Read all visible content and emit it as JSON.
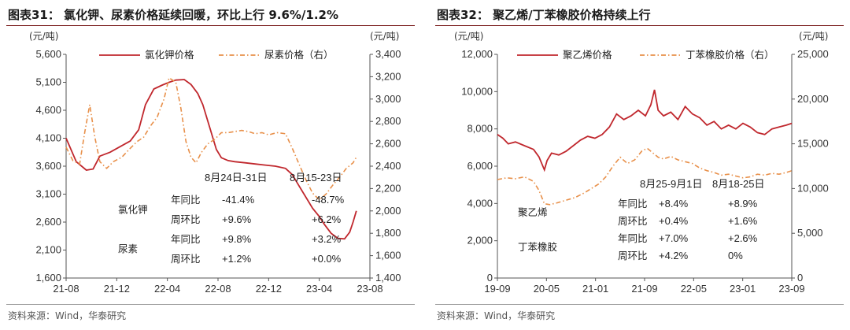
{
  "left": {
    "title": "图表31：  氯化钾、尿素价格延续回暖，环比上行 9.6%/1.2%",
    "source": "资料来源：Wind，华泰研究",
    "unit_left": "(元/吨)",
    "unit_right": "(元/吨)",
    "period1": "8月24日-31日",
    "period2": "8月15-23日",
    "rows": [
      {
        "group": "氯化钾",
        "label": "年同比",
        "v1": "-41.4%",
        "v2": "-48.7%"
      },
      {
        "group": "",
        "label": "周环比",
        "v1": "+9.6%",
        "v2": "+6.2%"
      },
      {
        "group": "尿素",
        "label": "年同比",
        "v1": "+9.8%",
        "v2": "+3.2%"
      },
      {
        "group": "",
        "label": "周环比",
        "v1": "+1.2%",
        "v2": "+0.0%"
      }
    ]
  },
  "right": {
    "title": "图表32：  聚乙烯/丁苯橡胶价格持续上行",
    "source": "资料来源：Wind，华泰研究",
    "unit_left": "(元/吨)",
    "unit_right": "(元/吨)",
    "period1": "8月25-9月1日",
    "period2": "8月18-25日",
    "rows": [
      {
        "group": "聚乙烯",
        "label": "年同比",
        "v1": "+8.4%",
        "v2": "+8.9%"
      },
      {
        "group": "",
        "label": "周环比",
        "v1": "+0.4%",
        "v2": "+1.6%"
      },
      {
        "group": "丁苯橡胶",
        "label": "年同比",
        "v1": "+7.0%",
        "v2": "+2.6%"
      },
      {
        "group": "",
        "label": "周环比",
        "v1": "+4.2%",
        "v2": "0%"
      }
    ]
  },
  "chart_data": [
    {
      "type": "line",
      "x_ticks": [
        "21-08",
        "21-12",
        "22-04",
        "22-08",
        "22-12",
        "23-04",
        "23-08"
      ],
      "y_left_ticks": [
        1600,
        2100,
        2600,
        3100,
        3600,
        4100,
        4600,
        5100,
        5600
      ],
      "y_right_ticks": [
        1400,
        1600,
        1800,
        2000,
        2200,
        2400,
        2600,
        2800,
        3000,
        3200,
        3400
      ],
      "ylim_left": [
        1600,
        5600
      ],
      "ylim_right": [
        1400,
        3400
      ],
      "legend_position": "top",
      "series": [
        {
          "name": "氯化钾价格",
          "axis": "left",
          "color": "#c0272d",
          "style": "solid",
          "points": [
            [
              0,
              4100
            ],
            [
              0.6,
              3680
            ],
            [
              1.2,
              3530
            ],
            [
              1.6,
              3550
            ],
            [
              2,
              3780
            ],
            [
              2.6,
              3850
            ],
            [
              3.2,
              3950
            ],
            [
              3.8,
              4050
            ],
            [
              4.3,
              4250
            ],
            [
              4.7,
              4700
            ],
            [
              5.2,
              4980
            ],
            [
              5.7,
              5050
            ],
            [
              6.1,
              5100
            ],
            [
              6.5,
              5140
            ],
            [
              7.0,
              5150
            ],
            [
              7.4,
              5060
            ],
            [
              7.8,
              4900
            ],
            [
              8.1,
              4700
            ],
            [
              8.5,
              4300
            ],
            [
              8.9,
              3900
            ],
            [
              9.2,
              3750
            ],
            [
              9.6,
              3700
            ],
            [
              10.0,
              3680
            ],
            [
              10.6,
              3660
            ],
            [
              11.2,
              3640
            ],
            [
              11.8,
              3620
            ],
            [
              12.4,
              3600
            ],
            [
              13.0,
              3560
            ],
            [
              13.4,
              3450
            ],
            [
              13.8,
              3250
            ],
            [
              14.2,
              3050
            ],
            [
              14.6,
              2850
            ],
            [
              15.0,
              2700
            ],
            [
              15.3,
              2560
            ],
            [
              15.7,
              2400
            ],
            [
              16.1,
              2310
            ],
            [
              16.5,
              2300
            ],
            [
              16.8,
              2420
            ],
            [
              17.0,
              2600
            ],
            [
              17.2,
              2800
            ]
          ]
        },
        {
          "name": "尿素价格（右）",
          "axis": "right",
          "color": "#e8904a",
          "style": "dashdot",
          "points": [
            [
              0,
              2570
            ],
            [
              0.4,
              2450
            ],
            [
              0.8,
              2420
            ],
            [
              1.1,
              2700
            ],
            [
              1.4,
              2950
            ],
            [
              1.7,
              2660
            ],
            [
              2.0,
              2440
            ],
            [
              2.4,
              2380
            ],
            [
              2.8,
              2440
            ],
            [
              3.3,
              2480
            ],
            [
              3.8,
              2560
            ],
            [
              4.2,
              2620
            ],
            [
              4.6,
              2660
            ],
            [
              5.0,
              2760
            ],
            [
              5.4,
              2840
            ],
            [
              5.8,
              3000
            ],
            [
              6.1,
              3190
            ],
            [
              6.5,
              3150
            ],
            [
              6.8,
              2920
            ],
            [
              7.1,
              2620
            ],
            [
              7.4,
              2480
            ],
            [
              7.7,
              2430
            ],
            [
              8.0,
              2520
            ],
            [
              8.4,
              2600
            ],
            [
              8.8,
              2640
            ],
            [
              9.2,
              2700
            ],
            [
              9.6,
              2700
            ],
            [
              10.0,
              2710
            ],
            [
              10.4,
              2720
            ],
            [
              10.8,
              2710
            ],
            [
              11.2,
              2690
            ],
            [
              11.6,
              2700
            ],
            [
              12.0,
              2680
            ],
            [
              12.5,
              2700
            ],
            [
              13.0,
              2690
            ],
            [
              13.4,
              2560
            ],
            [
              13.8,
              2420
            ],
            [
              14.2,
              2280
            ],
            [
              14.6,
              2160
            ],
            [
              15.0,
              2100
            ],
            [
              15.4,
              2150
            ],
            [
              15.8,
              2230
            ],
            [
              16.2,
              2300
            ],
            [
              16.6,
              2380
            ],
            [
              17.0,
              2430
            ],
            [
              17.2,
              2480
            ]
          ]
        }
      ]
    },
    {
      "type": "line",
      "x_ticks": [
        "19-09",
        "20-05",
        "21-01",
        "21-09",
        "22-05",
        "23-01",
        "23-09"
      ],
      "y_left_ticks": [
        0,
        2000,
        4000,
        6000,
        8000,
        10000,
        12000
      ],
      "y_right_ticks": [
        0,
        5000,
        10000,
        15000,
        20000,
        25000
      ],
      "ylim_left": [
        0,
        12000
      ],
      "ylim_right": [
        0,
        25000
      ],
      "legend_position": "top",
      "series": [
        {
          "name": "聚乙烯价格",
          "axis": "left",
          "color": "#c0272d",
          "style": "solid",
          "points": [
            [
              0,
              7700
            ],
            [
              0.3,
              7500
            ],
            [
              0.6,
              7200
            ],
            [
              1.0,
              7300
            ],
            [
              1.5,
              7100
            ],
            [
              2.0,
              6900
            ],
            [
              2.3,
              6500
            ],
            [
              2.6,
              5800
            ],
            [
              2.75,
              6300
            ],
            [
              3.0,
              6700
            ],
            [
              3.4,
              6600
            ],
            [
              3.8,
              6800
            ],
            [
              4.2,
              7100
            ],
            [
              4.6,
              7400
            ],
            [
              5.0,
              7600
            ],
            [
              5.4,
              7500
            ],
            [
              5.8,
              7700
            ],
            [
              6.2,
              8100
            ],
            [
              6.6,
              8800
            ],
            [
              7.0,
              8500
            ],
            [
              7.4,
              8700
            ],
            [
              7.8,
              9000
            ],
            [
              8.2,
              8700
            ],
            [
              8.5,
              9300
            ],
            [
              8.7,
              10100
            ],
            [
              8.9,
              9000
            ],
            [
              9.2,
              8700
            ],
            [
              9.6,
              8900
            ],
            [
              10.0,
              8500
            ],
            [
              10.4,
              9200
            ],
            [
              10.8,
              8800
            ],
            [
              11.2,
              8600
            ],
            [
              11.6,
              8200
            ],
            [
              12.0,
              8400
            ],
            [
              12.4,
              8000
            ],
            [
              12.8,
              8200
            ],
            [
              13.2,
              8000
            ],
            [
              13.6,
              8300
            ],
            [
              14.0,
              8100
            ],
            [
              14.4,
              7800
            ],
            [
              14.8,
              7700
            ],
            [
              15.2,
              8000
            ],
            [
              15.6,
              8100
            ],
            [
              16.0,
              8200
            ],
            [
              16.3,
              8300
            ]
          ]
        },
        {
          "name": "丁苯橡胶价格（右）",
          "axis": "right",
          "color": "#e8904a",
          "style": "dashdot",
          "points": [
            [
              0,
              11000
            ],
            [
              0.5,
              11200
            ],
            [
              1.0,
              11100
            ],
            [
              1.5,
              11300
            ],
            [
              2.0,
              10800
            ],
            [
              2.3,
              9800
            ],
            [
              2.6,
              8300
            ],
            [
              2.9,
              8200
            ],
            [
              3.3,
              8400
            ],
            [
              3.8,
              8700
            ],
            [
              4.3,
              9000
            ],
            [
              4.8,
              9500
            ],
            [
              5.2,
              10000
            ],
            [
              5.6,
              10500
            ],
            [
              6.0,
              11300
            ],
            [
              6.4,
              12500
            ],
            [
              6.8,
              13500
            ],
            [
              7.2,
              12800
            ],
            [
              7.6,
              13200
            ],
            [
              8.0,
              14200
            ],
            [
              8.3,
              14500
            ],
            [
              8.6,
              14000
            ],
            [
              8.9,
              13500
            ],
            [
              9.2,
              13300
            ],
            [
              9.6,
              13600
            ],
            [
              10.0,
              13200
            ],
            [
              10.4,
              13000
            ],
            [
              10.8,
              12800
            ],
            [
              11.2,
              12300
            ],
            [
              11.6,
              12000
            ],
            [
              12.0,
              11800
            ],
            [
              12.4,
              11500
            ],
            [
              12.8,
              11600
            ],
            [
              13.2,
              11400
            ],
            [
              13.6,
              11200
            ],
            [
              14.0,
              11300
            ],
            [
              14.4,
              11600
            ],
            [
              14.8,
              11500
            ],
            [
              15.2,
              11700
            ],
            [
              15.6,
              11600
            ],
            [
              16.0,
              11800
            ],
            [
              16.3,
              12000
            ]
          ]
        }
      ]
    }
  ]
}
